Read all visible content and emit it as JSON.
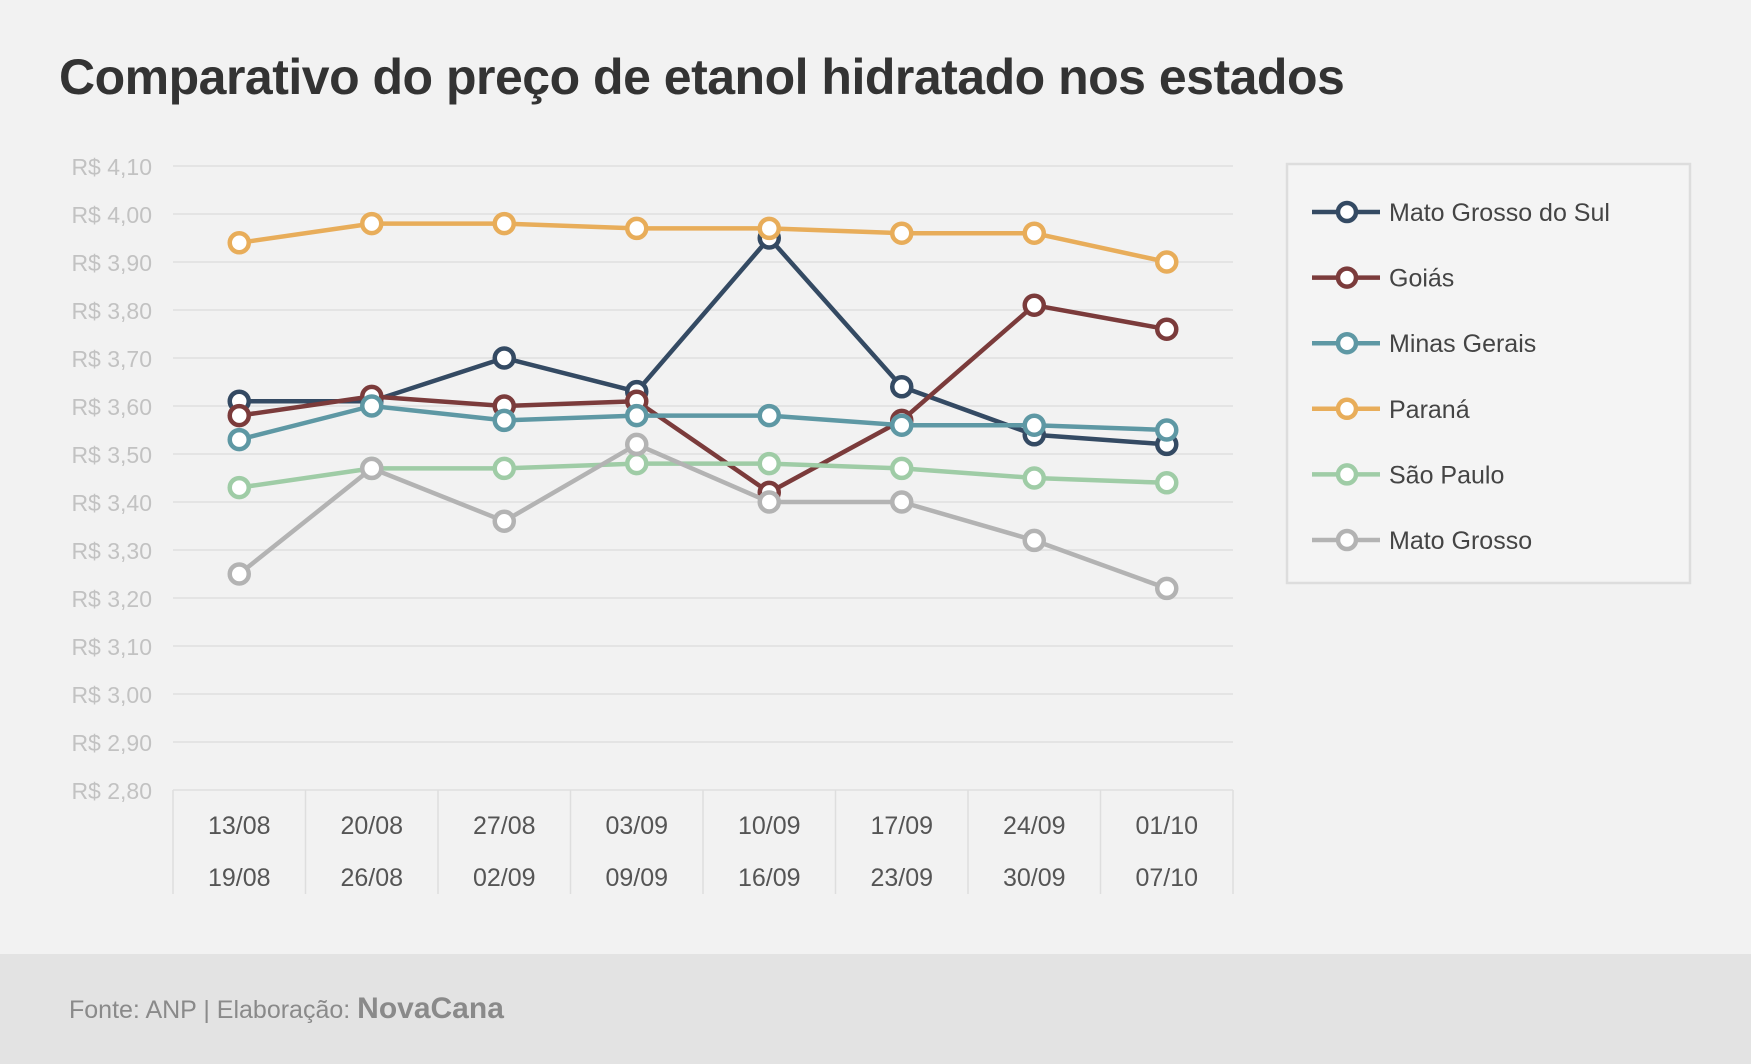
{
  "title": "Comparativo do preço de etanol hidratado nos estados",
  "footer": {
    "source_text": "Fonte: ANP | Elaboração:",
    "brand": "NovaCana"
  },
  "chart_data": {
    "type": "line",
    "title": "Comparativo do preço de etanol hidratado nos estados",
    "categories": [
      [
        "13/08",
        "19/08"
      ],
      [
        "20/08",
        "26/08"
      ],
      [
        "27/08",
        "02/09"
      ],
      [
        "03/09",
        "09/09"
      ],
      [
        "10/09",
        "16/09"
      ],
      [
        "17/09",
        "23/09"
      ],
      [
        "24/09",
        "30/09"
      ],
      [
        "01/10",
        "07/10"
      ]
    ],
    "ylim": [
      2.8,
      4.1
    ],
    "yticks": [
      4.1,
      4.0,
      3.9,
      3.8,
      3.7,
      3.6,
      3.5,
      3.4,
      3.3,
      3.2,
      3.1,
      3.0,
      2.9,
      2.8
    ],
    "ytick_labels": [
      "R$ 4,10",
      "R$ 4,00",
      "R$ 3,90",
      "R$ 3,80",
      "R$ 3,70",
      "R$ 3,60",
      "R$ 3,50",
      "R$ 3,40",
      "R$ 3,30",
      "R$ 3,20",
      "R$ 3,10",
      "R$ 3,00",
      "R$ 2,90",
      "R$ 2,80"
    ],
    "grid": true,
    "legend_position": "right",
    "series": [
      {
        "name": "Mato Grosso do Sul",
        "color": "#344a63",
        "values": [
          3.61,
          3.61,
          3.7,
          3.63,
          3.95,
          3.64,
          3.54,
          3.52
        ]
      },
      {
        "name": "Goiás",
        "color": "#7b3b3b",
        "values": [
          3.58,
          3.62,
          3.6,
          3.61,
          3.42,
          3.57,
          3.81,
          3.76
        ]
      },
      {
        "name": "Minas Gerais",
        "color": "#5e98a4",
        "values": [
          3.53,
          3.6,
          3.57,
          3.58,
          3.58,
          3.56,
          3.56,
          3.55
        ]
      },
      {
        "name": "Paraná",
        "color": "#e8ad5a",
        "values": [
          3.94,
          3.98,
          3.98,
          3.97,
          3.97,
          3.96,
          3.96,
          3.9
        ]
      },
      {
        "name": "São Paulo",
        "color": "#9fcca6",
        "values": [
          3.43,
          3.47,
          3.47,
          3.48,
          3.48,
          3.47,
          3.45,
          3.44
        ]
      },
      {
        "name": "Mato Grosso",
        "color": "#b3b3b3",
        "values": [
          3.25,
          3.47,
          3.36,
          3.52,
          3.4,
          3.4,
          3.32,
          3.22
        ]
      }
    ]
  }
}
